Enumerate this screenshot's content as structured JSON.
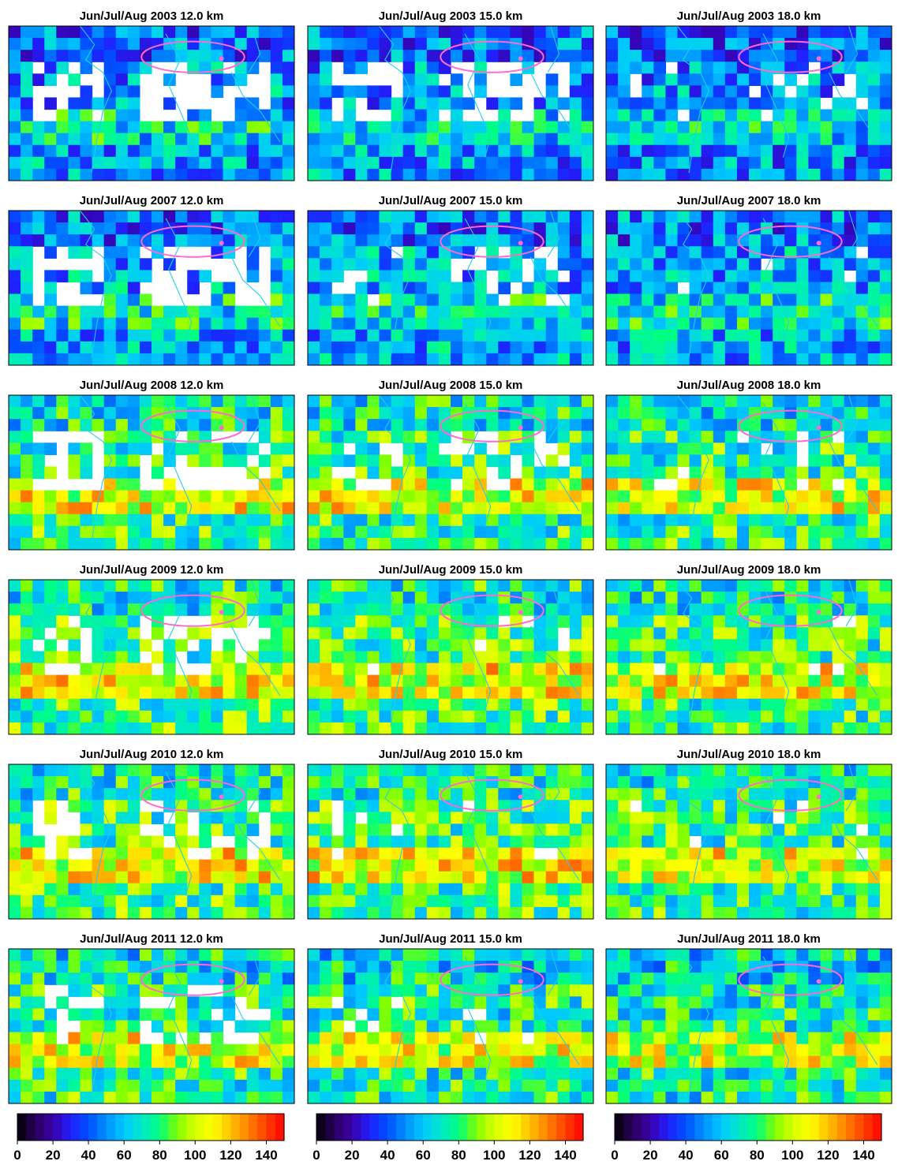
{
  "chart_data": {
    "type": "heatmap",
    "layout": {
      "rows": 6,
      "cols": 3
    },
    "variable_note": "",
    "colorscale": {
      "min": 0,
      "max": 150,
      "ticks": [
        0,
        20,
        40,
        60,
        80,
        100,
        120,
        140
      ],
      "tick_labels": [
        "0",
        "20",
        "40",
        "60",
        "80",
        "100",
        "120",
        "140"
      ],
      "colors": [
        "#000000",
        "#2a005a",
        "#3a00a8",
        "#2020ff",
        "#0050ff",
        "#0090ff",
        "#00c8ff",
        "#00e8c8",
        "#00ff80",
        "#80ff00",
        "#d8ff00",
        "#ffff00",
        "#ffc000",
        "#ff8000",
        "#ff4000",
        "#ff0000"
      ]
    },
    "overlay": {
      "coastline_color": "#20d0e8",
      "contour_color": "#ff6ad0"
    },
    "colorbars": [
      {
        "id": "colorbar-left"
      },
      {
        "id": "colorbar-middle"
      },
      {
        "id": "colorbar-right"
      }
    ],
    "panels": [
      {
        "title": "Jun/Jul/Aug 2003 12.0 km",
        "season": "Jun/Jul/Aug",
        "year": 2003,
        "altitude_km": 12.0,
        "mean": 52,
        "coverage": 0.68
      },
      {
        "title": "Jun/Jul/Aug 2003 15.0 km",
        "season": "Jun/Jul/Aug",
        "year": 2003,
        "altitude_km": 15.0,
        "mean": 52,
        "coverage": 0.72
      },
      {
        "title": "Jun/Jul/Aug 2003 18.0 km",
        "season": "Jun/Jul/Aug",
        "year": 2003,
        "altitude_km": 18.0,
        "mean": 50,
        "coverage": 0.92
      },
      {
        "title": "Jun/Jul/Aug 2007 12.0 km",
        "season": "Jun/Jul/Aug",
        "year": 2007,
        "altitude_km": 12.0,
        "mean": 55,
        "coverage": 0.7
      },
      {
        "title": "Jun/Jul/Aug 2007 15.0 km",
        "season": "Jun/Jul/Aug",
        "year": 2007,
        "altitude_km": 15.0,
        "mean": 55,
        "coverage": 0.82
      },
      {
        "title": "Jun/Jul/Aug 2007 18.0 km",
        "season": "Jun/Jul/Aug",
        "year": 2007,
        "altitude_km": 18.0,
        "mean": 55,
        "coverage": 0.97
      },
      {
        "title": "Jun/Jul/Aug 2008 12.0 km",
        "season": "Jun/Jul/Aug",
        "year": 2008,
        "altitude_km": 12.0,
        "mean": 78,
        "coverage": 0.74
      },
      {
        "title": "Jun/Jul/Aug 2008 15.0 km",
        "season": "Jun/Jul/Aug",
        "year": 2008,
        "altitude_km": 15.0,
        "mean": 78,
        "coverage": 0.84
      },
      {
        "title": "Jun/Jul/Aug 2008 18.0 km",
        "season": "Jun/Jul/Aug",
        "year": 2008,
        "altitude_km": 18.0,
        "mean": 76,
        "coverage": 0.94
      },
      {
        "title": "Jun/Jul/Aug 2009 12.0 km",
        "season": "Jun/Jul/Aug",
        "year": 2009,
        "altitude_km": 12.0,
        "mean": 80,
        "coverage": 0.8
      },
      {
        "title": "Jun/Jul/Aug 2009 15.0 km",
        "season": "Jun/Jul/Aug",
        "year": 2009,
        "altitude_km": 15.0,
        "mean": 80,
        "coverage": 0.94
      },
      {
        "title": "Jun/Jul/Aug 2009 18.0 km",
        "season": "Jun/Jul/Aug",
        "year": 2009,
        "altitude_km": 18.0,
        "mean": 78,
        "coverage": 0.97
      },
      {
        "title": "Jun/Jul/Aug 2010 12.0 km",
        "season": "Jun/Jul/Aug",
        "year": 2010,
        "altitude_km": 12.0,
        "mean": 80,
        "coverage": 0.78
      },
      {
        "title": "Jun/Jul/Aug 2010 15.0 km",
        "season": "Jun/Jul/Aug",
        "year": 2010,
        "altitude_km": 15.0,
        "mean": 80,
        "coverage": 0.94
      },
      {
        "title": "Jun/Jul/Aug 2010 18.0 km",
        "season": "Jun/Jul/Aug",
        "year": 2010,
        "altitude_km": 18.0,
        "mean": 78,
        "coverage": 0.96
      },
      {
        "title": "Jun/Jul/Aug 2011 12.0 km",
        "season": "Jun/Jul/Aug",
        "year": 2011,
        "altitude_km": 12.0,
        "mean": 76,
        "coverage": 0.82
      },
      {
        "title": "Jun/Jul/Aug 2011 15.0 km",
        "season": "Jun/Jul/Aug",
        "year": 2011,
        "altitude_km": 15.0,
        "mean": 74,
        "coverage": 0.96
      },
      {
        "title": "Jun/Jul/Aug 2011 18.0 km",
        "season": "Jun/Jul/Aug",
        "year": 2011,
        "altitude_km": 18.0,
        "mean": 72,
        "coverage": 1.0
      }
    ]
  }
}
